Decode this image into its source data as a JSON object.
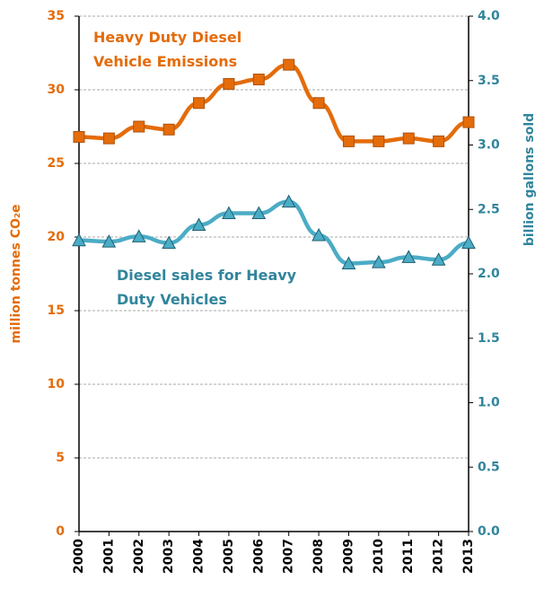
{
  "chart_data": {
    "type": "line",
    "categories": [
      "2000",
      "2001",
      "2002",
      "2003",
      "2004",
      "2005",
      "2006",
      "2007",
      "2008",
      "2009",
      "2010",
      "2011",
      "2012",
      "2013"
    ],
    "y_label": "million tonnes CO₂e",
    "y2_label": "billion gallons sold",
    "ylim": [
      0,
      35
    ],
    "yticks": [
      0,
      5,
      10,
      15,
      20,
      25,
      30,
      35
    ],
    "y2lim": [
      0,
      4
    ],
    "y2ticks": [
      {
        "value": 0,
        "label": "0.0"
      },
      0.5,
      {
        "value": 1,
        "label": "1.0"
      },
      1.5,
      {
        "value": 2,
        "label": "2.0"
      },
      2.5,
      {
        "value": 3,
        "label": "3.0"
      },
      3.5,
      {
        "value": 4,
        "label": "4.0"
      }
    ],
    "grid": true,
    "series": [
      {
        "name": "Heavy Duty Diesel Vehicle Emissions",
        "color": "#e46c0a",
        "marker": "square",
        "axis": "y",
        "values": [
          26.8,
          26.7,
          27.5,
          27.3,
          29.1,
          30.4,
          30.7,
          31.7,
          29.1,
          26.5,
          26.5,
          26.7,
          26.5,
          27.8
        ]
      },
      {
        "name": "Diesel sales for Heavy Duty Vehicles",
        "color": "#4bacc6",
        "marker": "triangle",
        "axis": "y2",
        "values": [
          2.26,
          2.25,
          2.29,
          2.24,
          2.38,
          2.47,
          2.47,
          2.56,
          2.3,
          2.08,
          2.09,
          2.13,
          2.11,
          2.24
        ]
      }
    ]
  }
}
